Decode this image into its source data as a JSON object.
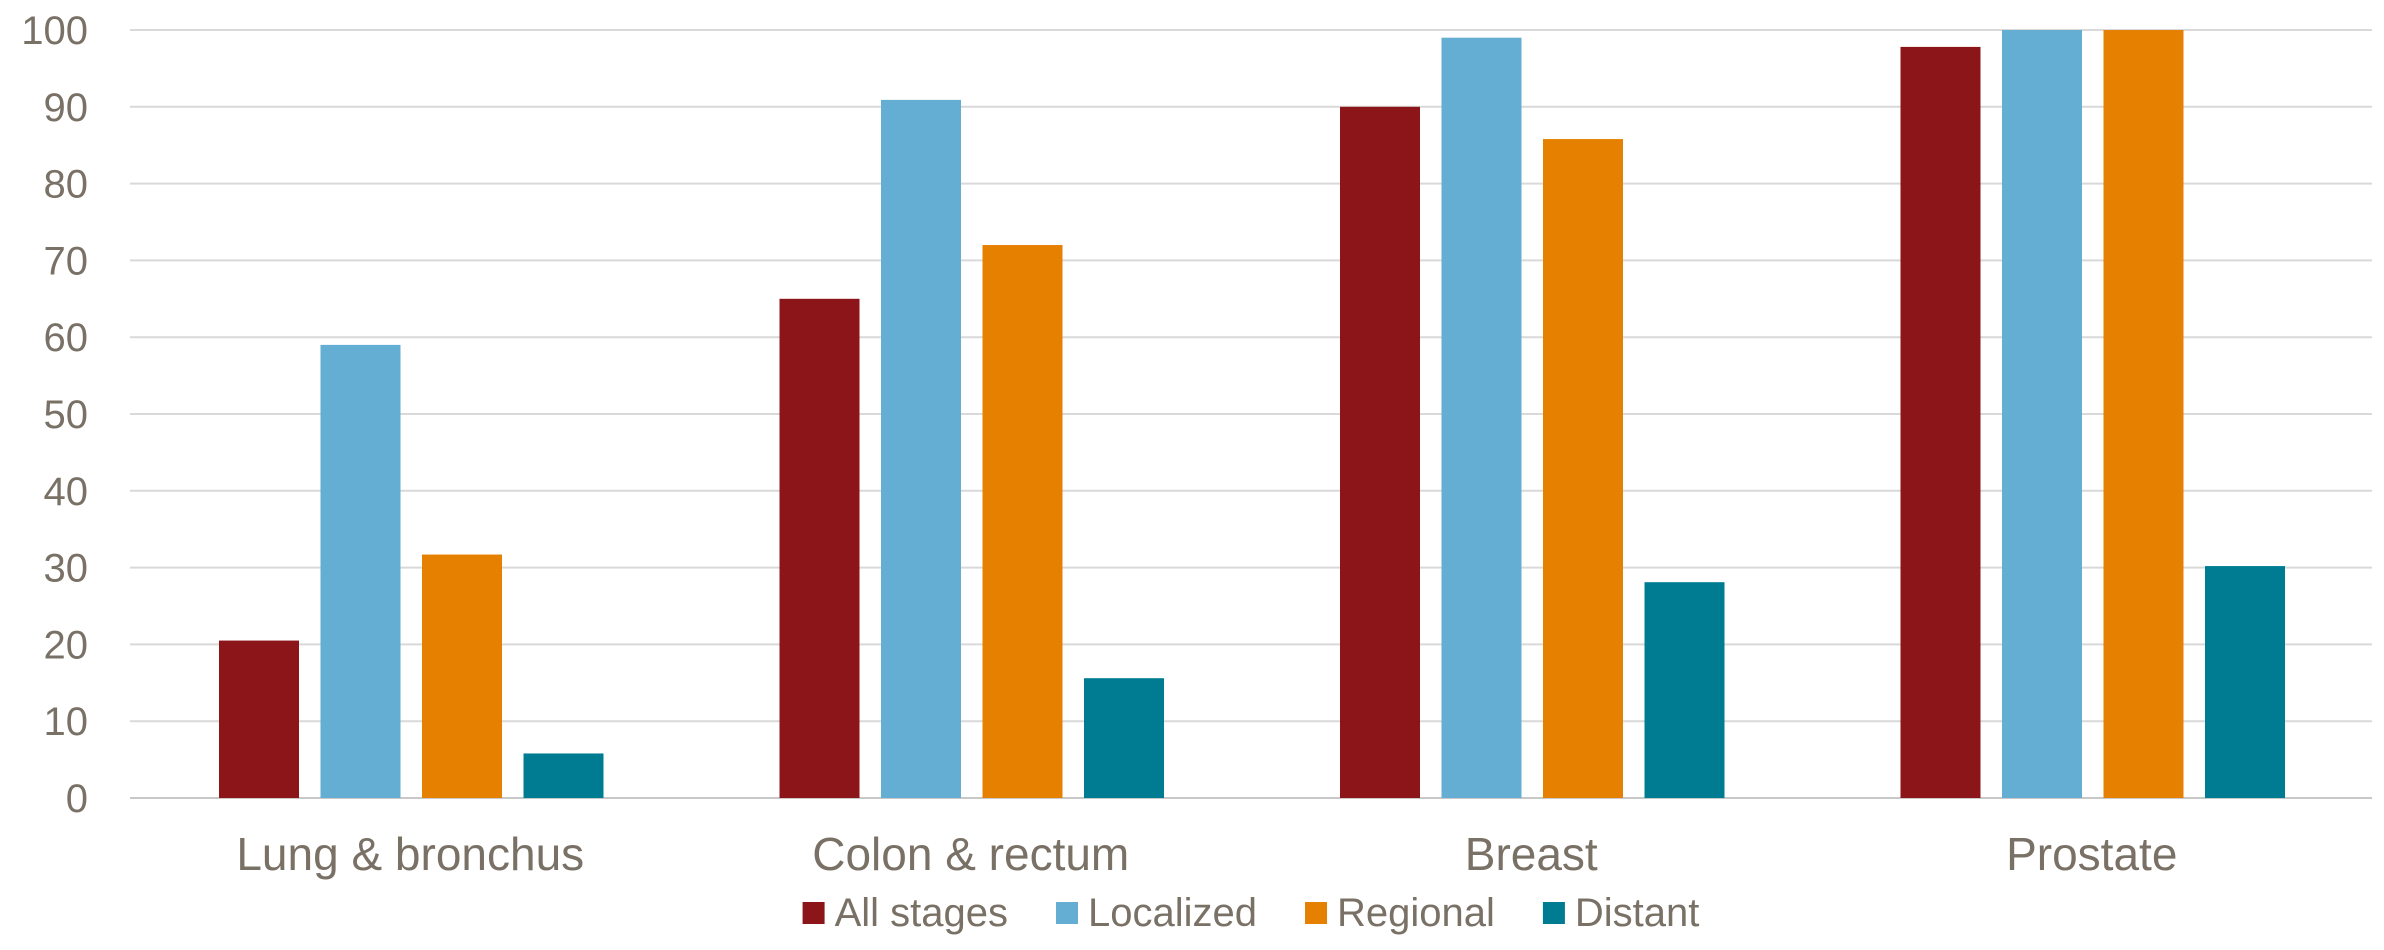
{
  "chart_data": {
    "type": "bar",
    "title": "",
    "xlabel": "",
    "ylabel": "",
    "ylim": [
      0,
      100
    ],
    "yticks": [
      0,
      10,
      20,
      30,
      40,
      50,
      60,
      70,
      80,
      90,
      100
    ],
    "grid": true,
    "legend_position": "bottom",
    "categories": [
      "Lung & bronchus",
      "Colon & rectum",
      "Breast",
      "Prostate"
    ],
    "series": [
      {
        "name": "All stages",
        "color": "#8b1518",
        "values": [
          20.5,
          65,
          90,
          97.8
        ]
      },
      {
        "name": "Localized",
        "color": "#65aed3",
        "values": [
          59,
          90.9,
          99,
          100
        ]
      },
      {
        "name": "Regional",
        "color": "#e68000",
        "values": [
          31.7,
          72,
          85.8,
          100
        ]
      },
      {
        "name": "Distant",
        "color": "#007c92",
        "values": [
          5.8,
          15.6,
          28.1,
          30.2
        ]
      }
    ]
  }
}
